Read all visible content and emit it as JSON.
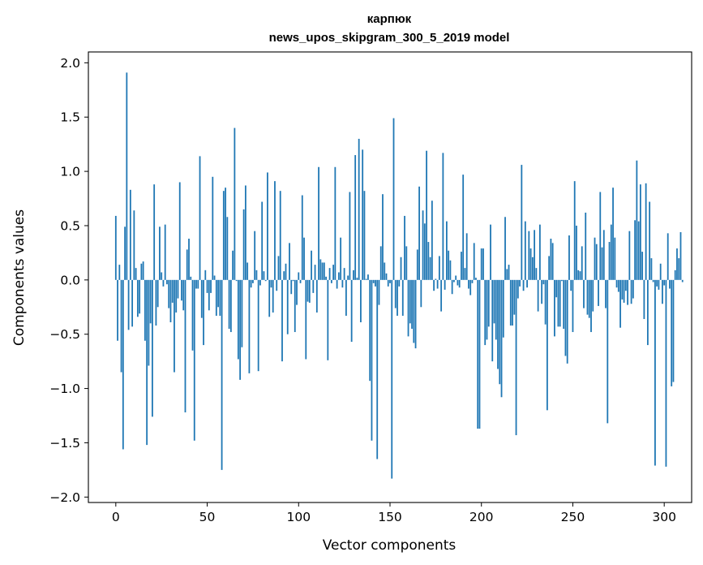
{
  "chart_data": {
    "type": "bar",
    "title_line1": "карпюк",
    "title_line2": "news_upos_skipgram_300_5_2019 model",
    "xlabel": "Vector components",
    "ylabel": "Components values",
    "xlim": [
      -15,
      315
    ],
    "ylim": [
      -2.05,
      2.1
    ],
    "xticks": [
      0,
      50,
      100,
      150,
      200,
      250,
      300
    ],
    "xtick_labels": [
      "0",
      "50",
      "100",
      "150",
      "200",
      "250",
      "300"
    ],
    "yticks": [
      -2.0,
      -1.5,
      -1.0,
      -0.5,
      0.0,
      0.5,
      1.0,
      1.5,
      2.0
    ],
    "ytick_labels": [
      "−2.0",
      "−1.5",
      "−1.0",
      "−0.5",
      "0.0",
      "0.5",
      "1.0",
      "1.5",
      "2.0"
    ],
    "bar_color": "#1f77b4",
    "values": [
      0.59,
      -0.56,
      0.14,
      -0.85,
      -1.56,
      0.49,
      1.91,
      -0.46,
      0.83,
      -0.43,
      0.64,
      0.11,
      -0.34,
      -0.31,
      0.15,
      0.17,
      -0.56,
      -1.52,
      -0.79,
      -0.4,
      -1.26,
      0.88,
      -0.42,
      -0.25,
      0.49,
      0.07,
      -0.06,
      0.51,
      -0.04,
      -0.26,
      -0.39,
      -0.21,
      -0.85,
      -0.3,
      -0.17,
      0.9,
      -0.19,
      -0.28,
      -1.22,
      0.28,
      0.38,
      0.03,
      -0.65,
      -1.48,
      -0.08,
      -0.08,
      1.14,
      -0.35,
      -0.6,
      0.09,
      -0.12,
      -0.28,
      -0.12,
      0.95,
      0.04,
      -0.33,
      -0.25,
      -0.33,
      -1.75,
      0.82,
      0.85,
      0.58,
      -0.45,
      -0.48,
      0.27,
      1.4,
      -0.01,
      -0.73,
      -0.92,
      -0.62,
      0.65,
      0.87,
      0.16,
      -0.86,
      -0.07,
      -0.03,
      0.45,
      0.09,
      -0.84,
      -0.05,
      0.72,
      0.08,
      -0.01,
      0.99,
      -0.34,
      -0.07,
      -0.3,
      0.91,
      -0.1,
      0.22,
      0.82,
      -0.75,
      0.08,
      0.15,
      -0.5,
      0.34,
      -0.13,
      -0.01,
      -0.48,
      -0.23,
      0.07,
      -0.03,
      0.78,
      0.39,
      -0.73,
      -0.2,
      -0.21,
      0.27,
      -0.12,
      0.14,
      -0.3,
      1.04,
      0.19,
      0.16,
      0.16,
      0.03,
      -0.74,
      0.11,
      -0.03,
      0.14,
      1.04,
      -0.08,
      0.07,
      0.39,
      -0.07,
      0.11,
      -0.33,
      0.04,
      0.81,
      -0.57,
      0.09,
      1.15,
      0.02,
      1.3,
      -0.39,
      1.2,
      0.82,
      0.01,
      0.05,
      -0.93,
      -1.48,
      -0.03,
      -0.06,
      -1.65,
      -0.23,
      0.31,
      0.79,
      0.16,
      0.06,
      -0.06,
      -0.03,
      -1.83,
      1.49,
      -0.26,
      -0.33,
      -0.06,
      0.21,
      -0.33,
      0.59,
      0.31,
      -0.52,
      -0.4,
      -0.45,
      -0.58,
      -0.63,
      0.28,
      0.86,
      -0.25,
      0.64,
      0.52,
      1.19,
      0.35,
      0.21,
      0.73,
      -0.1,
      0.01,
      -0.08,
      0.22,
      -0.29,
      1.17,
      -0.09,
      0.54,
      0.27,
      0.18,
      -0.13,
      -0.02,
      0.04,
      -0.05,
      -0.07,
      0.26,
      0.97,
      0.11,
      0.43,
      -0.08,
      -0.14,
      -0.03,
      0.34,
      0.02,
      -1.37,
      -1.37,
      0.29,
      0.29,
      -0.6,
      -0.55,
      -0.43,
      0.51,
      -0.75,
      -0.4,
      -0.55,
      -0.82,
      -0.96,
      -1.08,
      -0.53,
      0.58,
      0.1,
      0.14,
      -0.42,
      -0.42,
      -0.32,
      -1.43,
      -0.17,
      -0.06,
      1.06,
      -0.1,
      0.54,
      -0.07,
      0.45,
      0.29,
      0.21,
      0.46,
      0.11,
      -0.29,
      0.51,
      -0.22,
      -0.04,
      -0.41,
      -1.2,
      0.22,
      0.38,
      0.34,
      -0.52,
      -0.16,
      -0.43,
      -0.43,
      -0.01,
      -0.45,
      -0.7,
      -0.77,
      0.41,
      -0.1,
      -0.48,
      0.91,
      0.5,
      0.09,
      0.08,
      0.31,
      -0.26,
      0.62,
      -0.32,
      -0.35,
      -0.48,
      -0.29,
      0.39,
      0.33,
      -0.24,
      0.81,
      0.3,
      0.46,
      -0.26,
      -1.32,
      0.35,
      0.51,
      0.85,
      0.39,
      -0.07,
      -0.11,
      -0.44,
      -0.18,
      -0.21,
      -0.1,
      -0.23,
      0.45,
      -0.22,
      -0.17,
      0.55,
      1.1,
      0.54,
      0.88,
      0.26,
      -0.36,
      0.89,
      -0.6,
      0.72,
      0.2,
      -0.02,
      -1.71,
      -0.06,
      -0.09,
      0.15,
      -0.22,
      -0.05,
      -1.72,
      0.43,
      -0.08,
      -0.98,
      -0.94,
      0.09,
      0.29,
      0.2,
      0.44,
      -0.02
    ],
    "bar_color_hex": "#1f77b4"
  }
}
